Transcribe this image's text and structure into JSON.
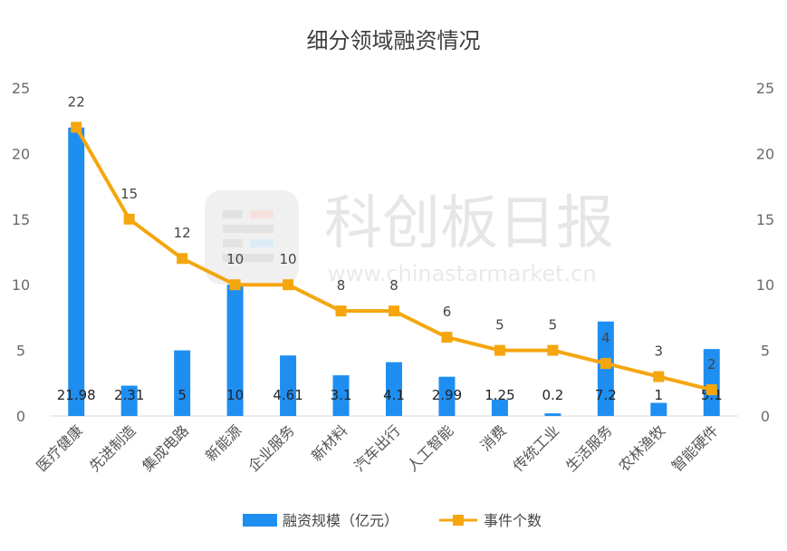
{
  "chart_data": {
    "type": "bar",
    "title": "细分领域融资情况",
    "categories": [
      "医疗健康",
      "先进制造",
      "集成电路",
      "新能源",
      "企业服务",
      "新材料",
      "汽车出行",
      "人工智能",
      "消费",
      "传统工业",
      "生活服务",
      "农林渔牧",
      "智能硬件"
    ],
    "series": [
      {
        "name": "融资规模（亿元）",
        "type": "bar",
        "axis": "left",
        "color": "#1f8ef1",
        "values": [
          21.98,
          2.31,
          5,
          10,
          4.61,
          3.1,
          4.1,
          2.99,
          1.25,
          0.2,
          7.2,
          1,
          5.1
        ],
        "labels": [
          "21.98",
          "2.31",
          "5",
          "10",
          "4.61",
          "3.1",
          "4.1",
          "2.99",
          "1.25",
          "0.2",
          "7.2",
          "1",
          "5.1"
        ]
      },
      {
        "name": "事件个数",
        "type": "line",
        "axis": "right",
        "color": "#f5a60f",
        "values": [
          22,
          15,
          12,
          10,
          10,
          8,
          8,
          6,
          5,
          5,
          4,
          3,
          2
        ],
        "labels": [
          "22",
          "15",
          "12",
          "10",
          "10",
          "8",
          "8",
          "6",
          "5",
          "5",
          "4",
          "3",
          "2"
        ]
      }
    ],
    "ylim": [
      0,
      25
    ],
    "y_ticks": [
      "0",
      "5",
      "10",
      "15",
      "20",
      "25"
    ],
    "y2lim": [
      0,
      25
    ],
    "y2_ticks": [
      "0",
      "5",
      "10",
      "15",
      "20",
      "25"
    ],
    "legend_position": "bottom",
    "grid": false
  },
  "watermark": {
    "text": "科创板日报",
    "url": "www.chinastarmarket.cn"
  }
}
